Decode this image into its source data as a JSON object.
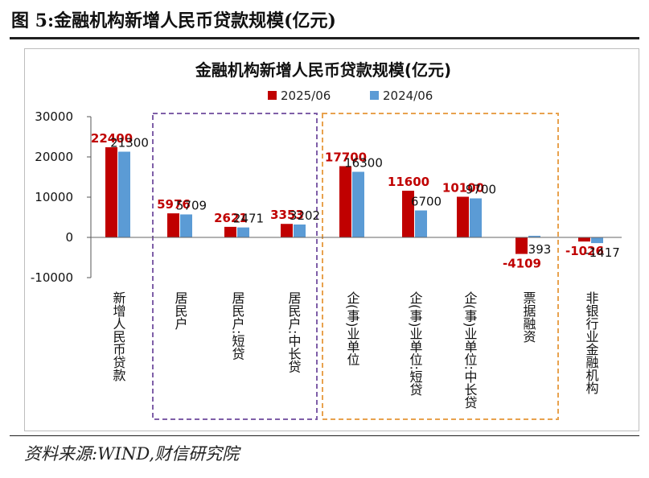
{
  "figure": {
    "title": "图 5:金融机构新增人民币贷款规模(亿元)",
    "source": "资料来源:WIND,财信研究院"
  },
  "chart_data": {
    "type": "bar",
    "title": "金融机构新增人民币贷款规模(亿元)",
    "categories": [
      "新增人民币贷款",
      "居民户",
      "居民户:短贷",
      "居民户:中长贷",
      "企(事)业单位",
      "企(事)业单位:短贷",
      "企(事)业单位:中长贷",
      "票据融资",
      "非银行业金融机构"
    ],
    "series": [
      {
        "name": "2025/06",
        "color": "#c00000",
        "values": [
          22400,
          5976,
          2621,
          3353,
          17700,
          11600,
          10100,
          -4109,
          -1026
        ]
      },
      {
        "name": "2024/06",
        "color": "#5b9bd5",
        "values": [
          21300,
          5709,
          2471,
          3202,
          16300,
          6700,
          9700,
          393,
          -1417
        ]
      }
    ],
    "data_labels": [
      [
        "22400",
        "5976",
        "2621",
        "3353",
        "17700",
        "11600",
        "10100",
        "-4109",
        "-1026"
      ],
      [
        "21300",
        "5709",
        "2471",
        "3202",
        "16300",
        "6700",
        "9700",
        "393",
        "-1417"
      ]
    ],
    "ylim": [
      -10000,
      30000
    ],
    "yticks": [
      -10000,
      0,
      10000,
      20000,
      30000
    ],
    "ytick_labels": [
      "-10000",
      "0",
      "10000",
      "20000",
      "30000"
    ],
    "xlabel": "",
    "ylabel": "",
    "legend": "top",
    "grid": false,
    "groups": [
      {
        "name": "居民户",
        "color": "#7f5fa8",
        "style": "dashed"
      },
      {
        "name": "企(事)业单位",
        "color": "#e8a24e",
        "style": "dashed"
      }
    ]
  }
}
